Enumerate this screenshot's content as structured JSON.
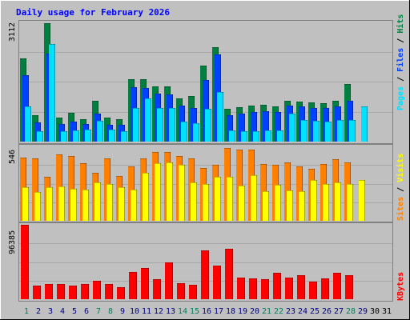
{
  "title": "Daily usage for February 2026",
  "colors": {
    "background": "#c0c0c0",
    "title": "#0000ff",
    "hits": "#008040",
    "files": "#0040ff",
    "pages": "#00e0ff",
    "visits": "#ffff00",
    "sites": "#ff8000",
    "kbytes": "#ff0000",
    "weekday_label": "#000080",
    "weekend_label": "#00805c",
    "future_label": "#000000"
  },
  "chart_data": [
    {
      "type": "bar",
      "name": "hits-files-pages",
      "ymax_label": "3112",
      "ymax": 3112,
      "legend": [
        "Pages",
        "Files",
        "Hits"
      ],
      "series": [
        {
          "name": "Hits",
          "values": [
            2150,
            680,
            3070,
            620,
            740,
            590,
            1060,
            620,
            580,
            1610,
            1620,
            1430,
            1430,
            1120,
            1180,
            1980,
            2440,
            850,
            890,
            940,
            950,
            920,
            1060,
            1040,
            1010,
            1000,
            1060,
            1490,
            0,
            0,
            0
          ]
        },
        {
          "name": "Files",
          "values": [
            1720,
            500,
            2280,
            460,
            520,
            450,
            720,
            440,
            430,
            1420,
            1400,
            1250,
            1230,
            930,
            880,
            1590,
            2270,
            680,
            730,
            760,
            780,
            760,
            940,
            920,
            880,
            880,
            920,
            1050,
            0,
            0,
            0
          ]
        },
        {
          "name": "Pages",
          "values": [
            920,
            270,
            2540,
            270,
            290,
            320,
            540,
            310,
            280,
            880,
            1130,
            880,
            880,
            520,
            470,
            860,
            1280,
            290,
            280,
            280,
            300,
            290,
            720,
            570,
            540,
            520,
            550,
            560,
            910,
            0,
            0
          ]
        }
      ]
    },
    {
      "type": "bar",
      "name": "visits-sites",
      "ymax_label": "546",
      "ymax": 546,
      "legend": [
        "Sites",
        "Visits"
      ],
      "series": [
        {
          "name": "Sites",
          "values": [
            465,
            460,
            325,
            485,
            475,
            420,
            355,
            460,
            330,
            400,
            460,
            505,
            505,
            475,
            455,
            385,
            410,
            535,
            525,
            520,
            415,
            410,
            430,
            400,
            380,
            415,
            450,
            430,
            0,
            0,
            0
          ]
        },
        {
          "name": "Visits",
          "values": [
            245,
            210,
            245,
            250,
            235,
            230,
            280,
            270,
            245,
            230,
            355,
            420,
            430,
            410,
            280,
            270,
            320,
            325,
            260,
            335,
            220,
            265,
            225,
            215,
            300,
            270,
            280,
            270,
            300,
            0,
            0
          ]
        }
      ]
    },
    {
      "type": "bar",
      "name": "kbytes",
      "ymax_label": "96385",
      "ymax": 96385,
      "legend": [
        "KBytes"
      ],
      "series": [
        {
          "name": "KBytes",
          "values": [
            96385,
            17500,
            19200,
            19800,
            17800,
            19800,
            24200,
            19800,
            15500,
            35300,
            40000,
            25500,
            47500,
            20800,
            19100,
            63700,
            43100,
            65400,
            28000,
            27100,
            25800,
            34300,
            27800,
            31000,
            23100,
            27200,
            34400,
            30600,
            0,
            0,
            0
          ]
        }
      ]
    }
  ],
  "x_labels": [
    "1",
    "2",
    "3",
    "4",
    "5",
    "6",
    "7",
    "8",
    "9",
    "10",
    "11",
    "12",
    "13",
    "14",
    "15",
    "16",
    "17",
    "18",
    "19",
    "20",
    "21",
    "22",
    "23",
    "24",
    "25",
    "26",
    "27",
    "28",
    "29",
    "30",
    "31"
  ],
  "weekend_days": [
    1,
    7,
    8,
    14,
    15,
    21,
    22,
    28
  ],
  "future_days": [
    30,
    31
  ]
}
